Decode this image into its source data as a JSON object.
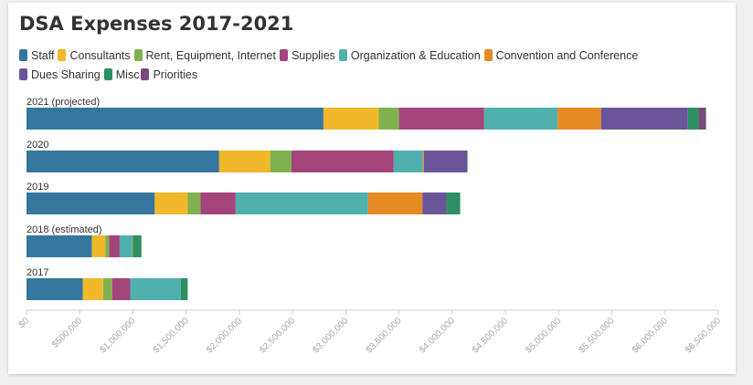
{
  "chart_data": {
    "type": "bar",
    "orientation": "horizontal",
    "stacked": true,
    "title": "DSA Expenses 2017-2021",
    "categories": [
      "2021 (projected)",
      "2020",
      "2019",
      "2018 (estimated)",
      "2017"
    ],
    "series": [
      {
        "name": "Staff",
        "color": "#34769e",
        "values": [
          2790000,
          1810000,
          1205000,
          615000,
          530000
        ]
      },
      {
        "name": "Consultants",
        "color": "#f0b82a",
        "values": [
          520000,
          480000,
          310000,
          125000,
          190000
        ]
      },
      {
        "name": "Rent, Equipment, Internet",
        "color": "#7fb24f",
        "values": [
          190000,
          200000,
          120000,
          35000,
          85000
        ]
      },
      {
        "name": "Supplies",
        "color": "#a3447a",
        "values": [
          800000,
          960000,
          330000,
          100000,
          170000
        ]
      },
      {
        "name": "Organization & Education",
        "color": "#4fb0ae",
        "values": [
          690000,
          275000,
          1245000,
          120000,
          475000
        ]
      },
      {
        "name": "Convention and Conference",
        "color": "#e68a23",
        "values": [
          410000,
          10000,
          510000,
          5000,
          0
        ]
      },
      {
        "name": "Dues Sharing",
        "color": "#6a559b",
        "values": [
          815000,
          405000,
          225000,
          0,
          0
        ]
      },
      {
        "name": "Misc",
        "color": "#2e8f62",
        "values": [
          100000,
          5000,
          130000,
          80000,
          65000
        ]
      },
      {
        "name": "Priorities",
        "color": "#7a4a7f",
        "values": [
          70000,
          0,
          0,
          0,
          0
        ]
      }
    ],
    "xlim": [
      0,
      6500000
    ],
    "xticks": [
      "$0",
      "$500,000",
      "$1,000,000",
      "$1,500,000",
      "$2,000,000",
      "$2,500,000",
      "$3,000,000",
      "$3,500,000",
      "$4,000,000",
      "$4,500,000",
      "$5,000,000",
      "$5,500,000",
      "$6,000,000",
      "$6,500,000"
    ],
    "grid": false,
    "legend": "top"
  }
}
